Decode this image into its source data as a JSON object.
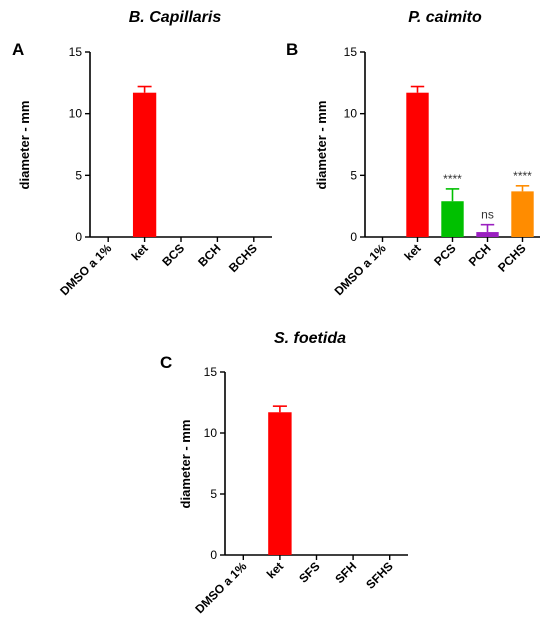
{
  "chart_data": [
    {
      "type": "bar",
      "panel_label": "A",
      "title": "B. Capillaris",
      "ylabel": "diameter - mm",
      "xlabel": "",
      "ylim": [
        0,
        15
      ],
      "yticks": [
        0,
        5,
        10,
        15
      ],
      "categories": [
        "DMSO a 1%",
        "ket",
        "BCS",
        "BCH",
        "BCHS"
      ],
      "values": [
        0,
        11.7,
        0,
        0,
        0
      ],
      "errors": [
        0,
        0.5,
        0,
        0,
        0
      ],
      "colors": [
        "#ff0000",
        "#ff0000",
        "#ff0000",
        "#ff0000",
        "#ff0000"
      ],
      "significance": [
        "",
        "",
        "",
        "",
        ""
      ]
    },
    {
      "type": "bar",
      "panel_label": "B",
      "title": "P. caimito",
      "ylabel": "diameter - mm",
      "xlabel": "",
      "ylim": [
        0,
        15
      ],
      "yticks": [
        0,
        5,
        10,
        15
      ],
      "categories": [
        "DMSO a 1%",
        "ket",
        "PCS",
        "PCH",
        "PCHS"
      ],
      "values": [
        0,
        11.7,
        2.9,
        0.4,
        3.7
      ],
      "errors": [
        0,
        0.5,
        1.0,
        0.6,
        0.45
      ],
      "colors": [
        "#ff0000",
        "#ff0000",
        "#00c000",
        "#9a1fc0",
        "#ff8c00"
      ],
      "significance": [
        "",
        "",
        "****",
        "ns",
        "****"
      ]
    },
    {
      "type": "bar",
      "panel_label": "C",
      "title": "S. foetida",
      "ylabel": "diameter - mm",
      "xlabel": "",
      "ylim": [
        0,
        15
      ],
      "yticks": [
        0,
        5,
        10,
        15
      ],
      "categories": [
        "DMSO a 1%",
        "ket",
        "SFS",
        "SFH",
        "SFHS"
      ],
      "values": [
        0,
        11.7,
        0,
        0,
        0
      ],
      "errors": [
        0,
        0.5,
        0,
        0,
        0
      ],
      "colors": [
        "#ff0000",
        "#ff0000",
        "#ff0000",
        "#ff0000",
        "#ff0000"
      ],
      "significance": [
        "",
        "",
        "",
        "",
        ""
      ]
    }
  ]
}
